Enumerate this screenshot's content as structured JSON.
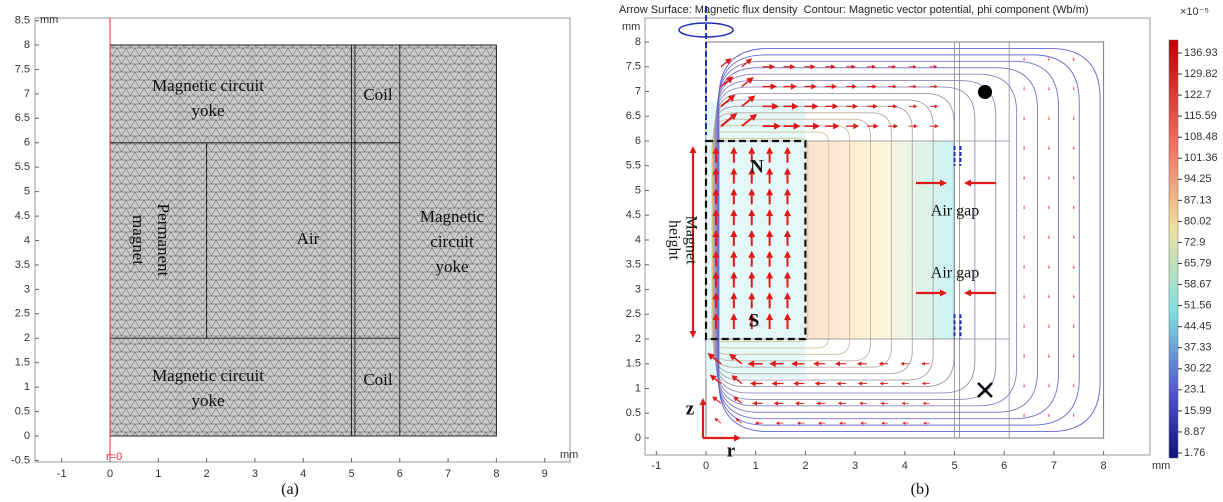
{
  "panel_a": {
    "y_unit": "mm",
    "x_unit": "mm",
    "origin_label": "r=0",
    "x_ticks": [
      "-1",
      "0",
      "1",
      "2",
      "3",
      "4",
      "5",
      "6",
      "7",
      "8",
      "9"
    ],
    "y_ticks": [
      "-0.5",
      "0",
      "0.5",
      "1",
      "1.5",
      "2",
      "2.5",
      "3",
      "3.5",
      "4",
      "4.5",
      "5",
      "5.5",
      "6",
      "6.5",
      "7",
      "7.5",
      "8",
      "8.5"
    ],
    "regions": [
      {
        "lines": [
          "Magnetic circuit",
          "yoke"
        ]
      },
      {
        "lines": [
          "Coil"
        ]
      },
      {
        "lines": [
          "Permanent",
          "magnet"
        ]
      },
      {
        "lines": [
          "Air"
        ]
      },
      {
        "lines": [
          "Magnetic",
          "circuit",
          "yoke"
        ]
      },
      {
        "lines": [
          "Magnetic circuit",
          "yoke"
        ]
      },
      {
        "lines": [
          "Coil"
        ]
      }
    ],
    "caption": "(a)"
  },
  "panel_b": {
    "title": "Arrow Surface: Magnetic flux density  Contour: Magnetic vector potential, phi component (Wb/m)",
    "y_unit": "mm",
    "x_unit": "mm",
    "x_ticks": [
      "-1",
      "0",
      "1",
      "2",
      "3",
      "4",
      "5",
      "6",
      "7",
      "8"
    ],
    "y_ticks": [
      "0",
      "0.5",
      "1",
      "1.5",
      "2",
      "2.5",
      "3",
      "3.5",
      "4",
      "4.5",
      "5",
      "5.5",
      "6",
      "6.5",
      "7",
      "7.5",
      "8"
    ],
    "colorbar_scale": "×10⁻⁵",
    "colorbar_ticks": [
      "136.93",
      "129.82",
      "122.7",
      "115.59",
      "108.48",
      "101.36",
      "94.25",
      "87.13",
      "80.02",
      "72.9",
      "65.79",
      "58.67",
      "51.56",
      "44.45",
      "37.33",
      "30.22",
      "23.1",
      "15.99",
      "8.87",
      "1.76"
    ],
    "pole_labels": [
      "N",
      "S"
    ],
    "magnet_height": [
      "Magnet",
      "height"
    ],
    "air_gap_labels": [
      "Air gap",
      "Air gap"
    ],
    "axis_arrows": [
      "z",
      "r"
    ],
    "caption": "(b)"
  }
}
